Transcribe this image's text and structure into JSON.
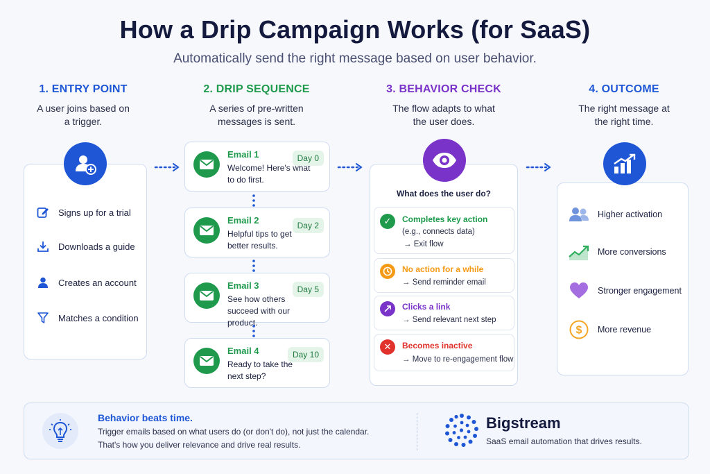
{
  "header": {
    "title": "How a Drip Campaign Works (for SaaS)",
    "subtitle": "Automatically send the right message based on user behavior."
  },
  "columns": {
    "entry": {
      "heading": "1. ENTRY POINT",
      "description": "A user joins based on a trigger.",
      "items": [
        {
          "label": "Signs up for a trial",
          "icon": "edit-icon"
        },
        {
          "label": "Downloads a guide",
          "icon": "download-icon"
        },
        {
          "label": "Creates an account",
          "icon": "person-icon"
        },
        {
          "label": "Matches a condition",
          "icon": "filter-icon"
        }
      ]
    },
    "sequence": {
      "heading": "2. DRIP SEQUENCE",
      "description": "A series of pre-written messages is sent.",
      "emails": [
        {
          "title": "Email 1",
          "body": "Welcome! Here's what to do first.",
          "day": "Day 0"
        },
        {
          "title": "Email 2",
          "body": "Helpful tips to get better results.",
          "day": "Day 2"
        },
        {
          "title": "Email 3",
          "body": "See how others succeed with our product.",
          "day": "Day 5"
        },
        {
          "title": "Email 4",
          "body": "Ready to take the next step?",
          "day": "Day 10"
        }
      ]
    },
    "behavior": {
      "heading": "3. BEHAVIOR CHECK",
      "description": "The flow adapts to what the user does.",
      "question": "What does the user do?",
      "options": [
        {
          "title": "Completes key action",
          "note": "(e.g., connects data)",
          "action": "→ Exit flow",
          "color": "#1f9a4d"
        },
        {
          "title": "No action for a while",
          "action": "→ Send reminder email",
          "color": "#f59a16"
        },
        {
          "title": "Clicks a link",
          "action": "→ Send relevant next step",
          "color": "#7a33c9"
        },
        {
          "title": "Becomes inactive",
          "action": "→ Move to re-engagement flow",
          "color": "#e0312b"
        }
      ]
    },
    "outcome": {
      "heading": "4. OUTCOME",
      "description": "The right message at the right time.",
      "items": [
        {
          "label": "Higher activation",
          "icon": "users-icon"
        },
        {
          "label": "More conversions",
          "icon": "growth-icon"
        },
        {
          "label": "Stronger engagement",
          "icon": "heart-icon"
        },
        {
          "label": "More revenue",
          "icon": "dollar-icon"
        }
      ]
    }
  },
  "footer": {
    "headline": "Behavior beats time.",
    "text_line1": "Trigger emails based on what users do (or don't do), not just the calendar.",
    "text_line2": "That's how you deliver relevance and drive real results.",
    "brand": "Bigstream",
    "tagline": "SaaS email automation that drives results."
  },
  "colors": {
    "blue": "#1e56d6",
    "green": "#1f9a4d",
    "purple": "#7a33c9",
    "orange": "#f59a16",
    "red": "#e0312b"
  }
}
